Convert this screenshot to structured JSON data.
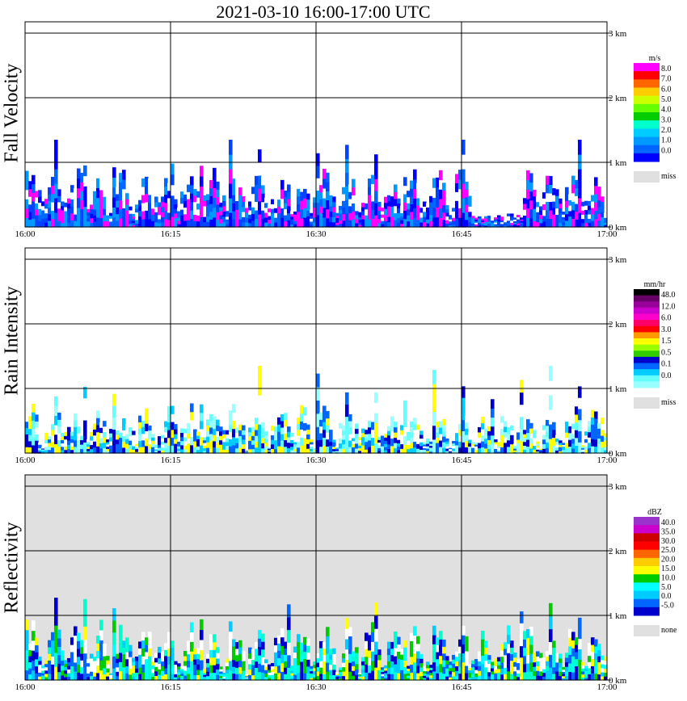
{
  "title": "2021-03-10   16:00-17:00 UTC",
  "chart_data": [
    {
      "type": "heatmap",
      "ylabel": "Fall Velocity",
      "x_ticks": [
        "16:00",
        "16:15",
        "16:30",
        "16:45",
        "17:00"
      ],
      "y_ticks": [
        "0 km",
        "1 km",
        "2 km",
        "3 km"
      ],
      "ylim_km": [
        0,
        3
      ],
      "background": "#ffffff",
      "colorbar": {
        "unit": "m/s",
        "labels": [
          "8.0",
          "7.0",
          "6.0",
          "5.0",
          "4.0",
          "3.0",
          "2.0",
          "1.0",
          "0.0"
        ],
        "colors": [
          "#ff00ff",
          "#ff0000",
          "#ff6600",
          "#ffcc00",
          "#ccff00",
          "#66ff00",
          "#00cc00",
          "#00ffcc",
          "#00ccff",
          "#0099ff",
          "#0066ff",
          "#0000ff"
        ],
        "missing_color": "#e0e0e0",
        "missing_label": "miss"
      },
      "field": {
        "base_km": 0.5,
        "amp_km": 0.25,
        "streak_km": 0.8,
        "colors": [
          "#0000ff",
          "#0044ff",
          "#0066ff",
          "#0099ff",
          "#ff00ff"
        ],
        "background": "#ffffff",
        "gap_minutes": [
          [
            46,
            51
          ]
        ]
      }
    },
    {
      "type": "heatmap",
      "ylabel": "Rain Intensity",
      "x_ticks": [
        "16:00",
        "16:15",
        "16:30",
        "16:45",
        "17:00"
      ],
      "y_ticks": [
        "0 km",
        "1 km",
        "2 km",
        "3 km"
      ],
      "ylim_km": [
        0,
        3
      ],
      "background": "#ffffff",
      "colorbar": {
        "unit": "mm/hr",
        "labels": [
          "48.0",
          "12.0",
          "6.0",
          "3.0",
          "1.5",
          "0.5",
          "0.1",
          "0.0"
        ],
        "colors": [
          "#000000",
          "#660066",
          "#990099",
          "#cc00cc",
          "#ff00cc",
          "#ff0066",
          "#ff0000",
          "#ff9900",
          "#ffff00",
          "#99ff00",
          "#33cc00",
          "#0000cc",
          "#0066ff",
          "#00ccff",
          "#66ffff",
          "#99ffff"
        ],
        "missing_color": "#e0e0e0",
        "missing_label": "miss"
      },
      "field": {
        "base_km": 0.35,
        "amp_km": 0.2,
        "streak_km": 0.9,
        "colors": [
          "#66ffff",
          "#99ffff",
          "#00ccff",
          "#0066ff",
          "#0000cc",
          "#ffff00"
        ],
        "background": "#ffffff",
        "gap_minutes": []
      }
    },
    {
      "type": "heatmap",
      "ylabel": "Reflectivity",
      "x_ticks": [
        "16:00",
        "16:15",
        "16:30",
        "16:45",
        "17:00"
      ],
      "y_ticks": [
        "0 km",
        "1 km",
        "2 km",
        "3 km"
      ],
      "ylim_km": [
        0,
        3
      ],
      "background": "#e0e0e0",
      "colorbar": {
        "unit": "dBZ",
        "labels": [
          "40.0",
          "35.0",
          "30.0",
          "25.0",
          "20.0",
          "15.0",
          "10.0",
          "5.0",
          "0.0",
          "-5.0"
        ],
        "colors": [
          "#9933cc",
          "#cc00cc",
          "#cc0000",
          "#ff0000",
          "#ff6600",
          "#ffcc00",
          "#ffff00",
          "#00cc00",
          "#00ffff",
          "#00ccff",
          "#0066ff",
          "#0000cc"
        ],
        "missing_color": "#e0e0e0",
        "missing_label": "none"
      },
      "field": {
        "base_km": 0.45,
        "amp_km": 0.25,
        "streak_km": 0.9,
        "colors": [
          "#0000cc",
          "#0066ff",
          "#00ccff",
          "#00ffff",
          "#00ffcc",
          "#00cc00",
          "#ffff00"
        ],
        "background": "#ffffff",
        "gap_minutes": []
      }
    }
  ]
}
